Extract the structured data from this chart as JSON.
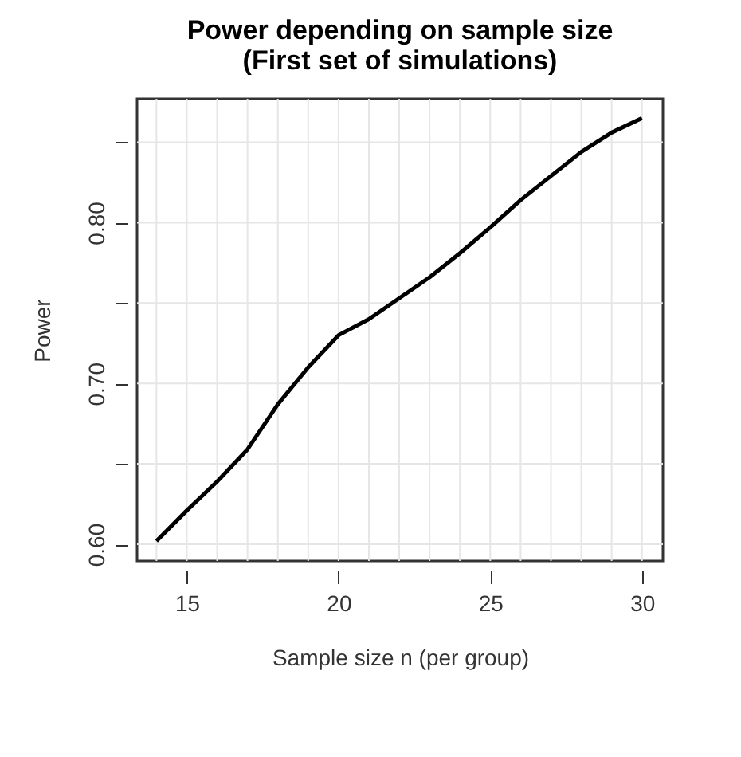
{
  "chart_data": {
    "type": "line",
    "title": "Power depending on sample size\n(First set of simulations)",
    "xlabel": "Sample size n (per group)",
    "ylabel": "Power",
    "x": [
      14,
      15,
      16,
      17,
      18,
      19,
      20,
      21,
      22,
      23,
      24,
      25,
      26,
      27,
      28,
      29,
      30
    ],
    "series": [
      {
        "color": "#000000",
        "values": [
          0.602,
          0.621,
          0.639,
          0.659,
          0.687,
          0.71,
          0.73,
          0.74,
          0.753,
          0.766,
          0.781,
          0.797,
          0.814,
          0.829,
          0.844,
          0.856,
          0.865
        ]
      }
    ],
    "xlim": [
      13.36,
      30.69
    ],
    "ylim": [
      0.5896,
      0.877
    ],
    "xticks": [
      15,
      20,
      25,
      30
    ],
    "yticks": [
      {
        "value": 0.6,
        "label": "0.60"
      },
      {
        "value": 0.65,
        "label": null
      },
      {
        "value": 0.7,
        "label": "0.70"
      },
      {
        "value": 0.75,
        "label": null
      },
      {
        "value": 0.8,
        "label": "0.80"
      },
      {
        "value": 0.85,
        "label": null
      }
    ],
    "grid": true,
    "line_style": "solid",
    "marker": "none"
  }
}
